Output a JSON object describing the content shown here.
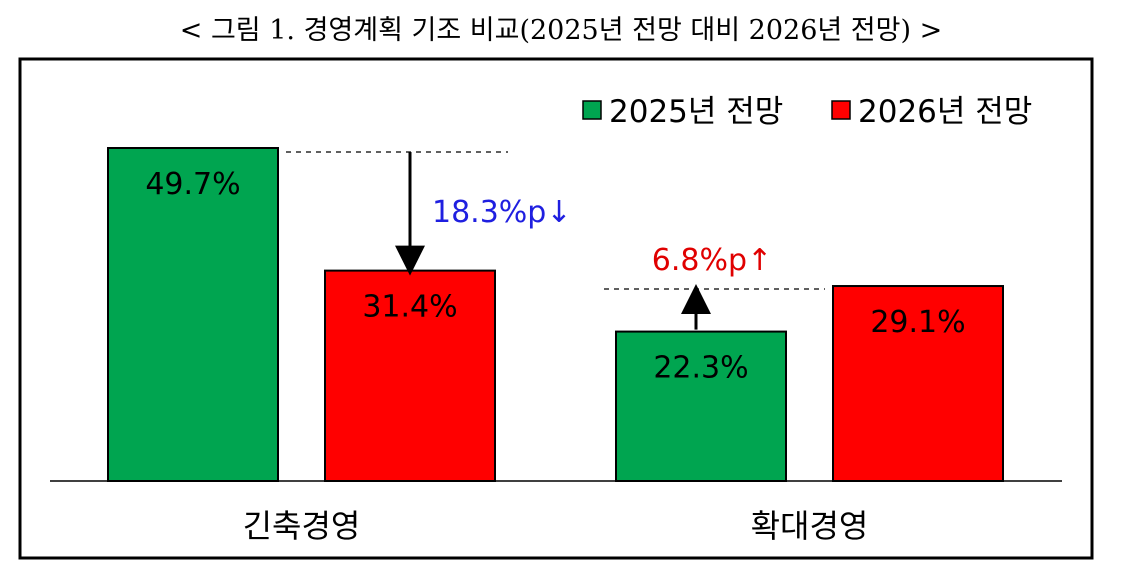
{
  "title": "< 그림 1. 경영계획 기조 비교(2025년 전망 대비 2026년 전망) >",
  "colors": {
    "green": "#00a550",
    "red": "#ff0000",
    "blue": "#1f1fe0",
    "annotation_red": "#e00000"
  },
  "chart_data": {
    "type": "bar",
    "categories": [
      "긴축경영",
      "확대경영"
    ],
    "series": [
      {
        "name": "2025년 전망",
        "values": [
          49.7,
          22.3
        ],
        "labels": [
          "49.7%",
          "22.3%"
        ],
        "color": "#00a550"
      },
      {
        "name": "2026년 전망",
        "values": [
          31.4,
          29.1
        ],
        "labels": [
          "31.4%",
          "29.1%"
        ],
        "color": "#ff0000"
      }
    ],
    "annotations": [
      {
        "category": "긴축경영",
        "text": "18.3%p↓",
        "direction": "down",
        "color": "#1f1fe0"
      },
      {
        "category": "확대경영",
        "text": "6.8%p↑",
        "direction": "up",
        "color": "#e00000"
      }
    ],
    "legend_position": "top-right",
    "grid": false,
    "ylim": [
      0,
      55
    ]
  }
}
